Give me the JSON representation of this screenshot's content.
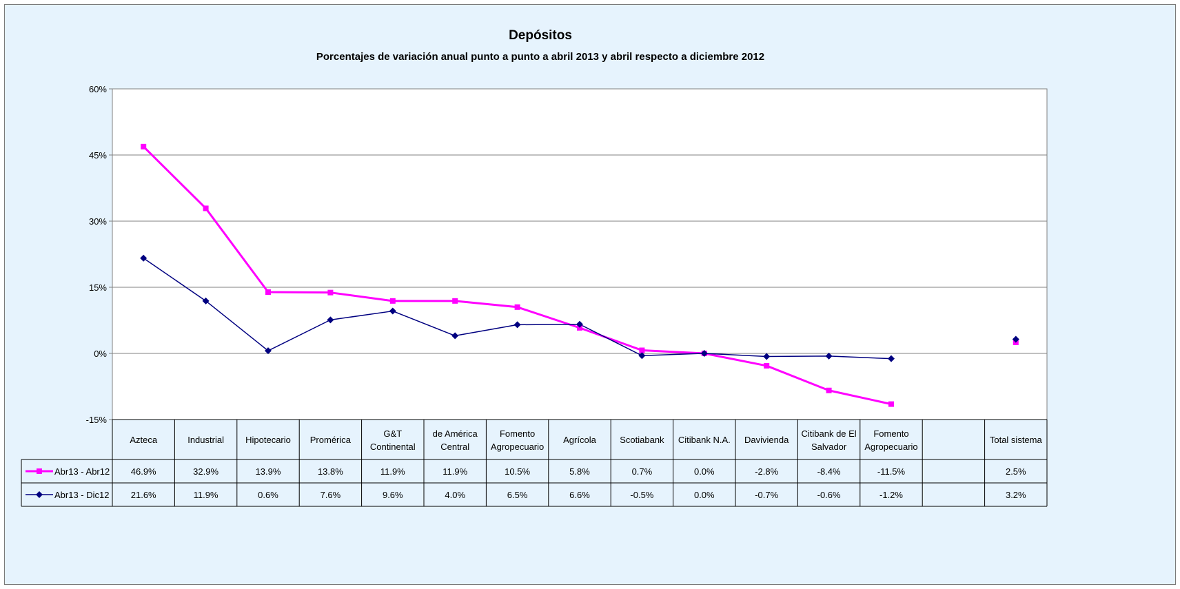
{
  "chart_data": {
    "type": "line",
    "title": "Depósitos",
    "subtitle": "Porcentajes de variación anual punto a punto a abril 2013 y abril respecto a diciembre 2012",
    "ylim": [
      -15,
      60
    ],
    "yticks": [
      60,
      45,
      30,
      15,
      0,
      -15
    ],
    "ytick_labels": [
      "60%",
      "45%",
      "30%",
      "15%",
      "0%",
      "-15%"
    ],
    "grid": true,
    "categories": [
      [
        "Azteca"
      ],
      [
        "Industrial"
      ],
      [
        "Hipotecario"
      ],
      [
        "Promérica"
      ],
      [
        "G&T",
        "Continental"
      ],
      [
        "de América",
        "Central"
      ],
      [
        "Fomento",
        "Agropecuario"
      ],
      [
        "Agrícola"
      ],
      [
        "Scotiabank"
      ],
      [
        "Citibank N.A."
      ],
      [
        "Davivienda"
      ],
      [
        "Citibank de El",
        "Salvador"
      ],
      [
        "Fomento",
        "Agropecuario"
      ],
      [
        ""
      ],
      [
        "Total sistema"
      ]
    ],
    "series": [
      {
        "name": "Abr13 - Abr12",
        "color": "#ff00ff",
        "marker": "square",
        "values": [
          46.9,
          32.9,
          13.9,
          13.8,
          11.9,
          11.9,
          10.5,
          5.8,
          0.7,
          0.0,
          -2.8,
          -8.4,
          -11.5,
          null,
          2.5
        ],
        "labels": [
          "46.9%",
          "32.9%",
          "13.9%",
          "13.8%",
          "11.9%",
          "11.9%",
          "10.5%",
          "5.8%",
          "0.7%",
          "0.0%",
          "-2.8%",
          "-8.4%",
          "-11.5%",
          "",
          "2.5%"
        ]
      },
      {
        "name": "Abr13 - Dic12",
        "color": "#000080",
        "marker": "diamond",
        "values": [
          21.6,
          11.9,
          0.6,
          7.6,
          9.6,
          4.0,
          6.5,
          6.6,
          -0.5,
          0.0,
          -0.7,
          -0.6,
          -1.2,
          null,
          3.2
        ],
        "labels": [
          "21.6%",
          "11.9%",
          "0.6%",
          "7.6%",
          "9.6%",
          "4.0%",
          "6.5%",
          "6.6%",
          "-0.5%",
          "0.0%",
          "-0.7%",
          "-0.6%",
          "-1.2%",
          "",
          "3.2%"
        ]
      }
    ]
  }
}
